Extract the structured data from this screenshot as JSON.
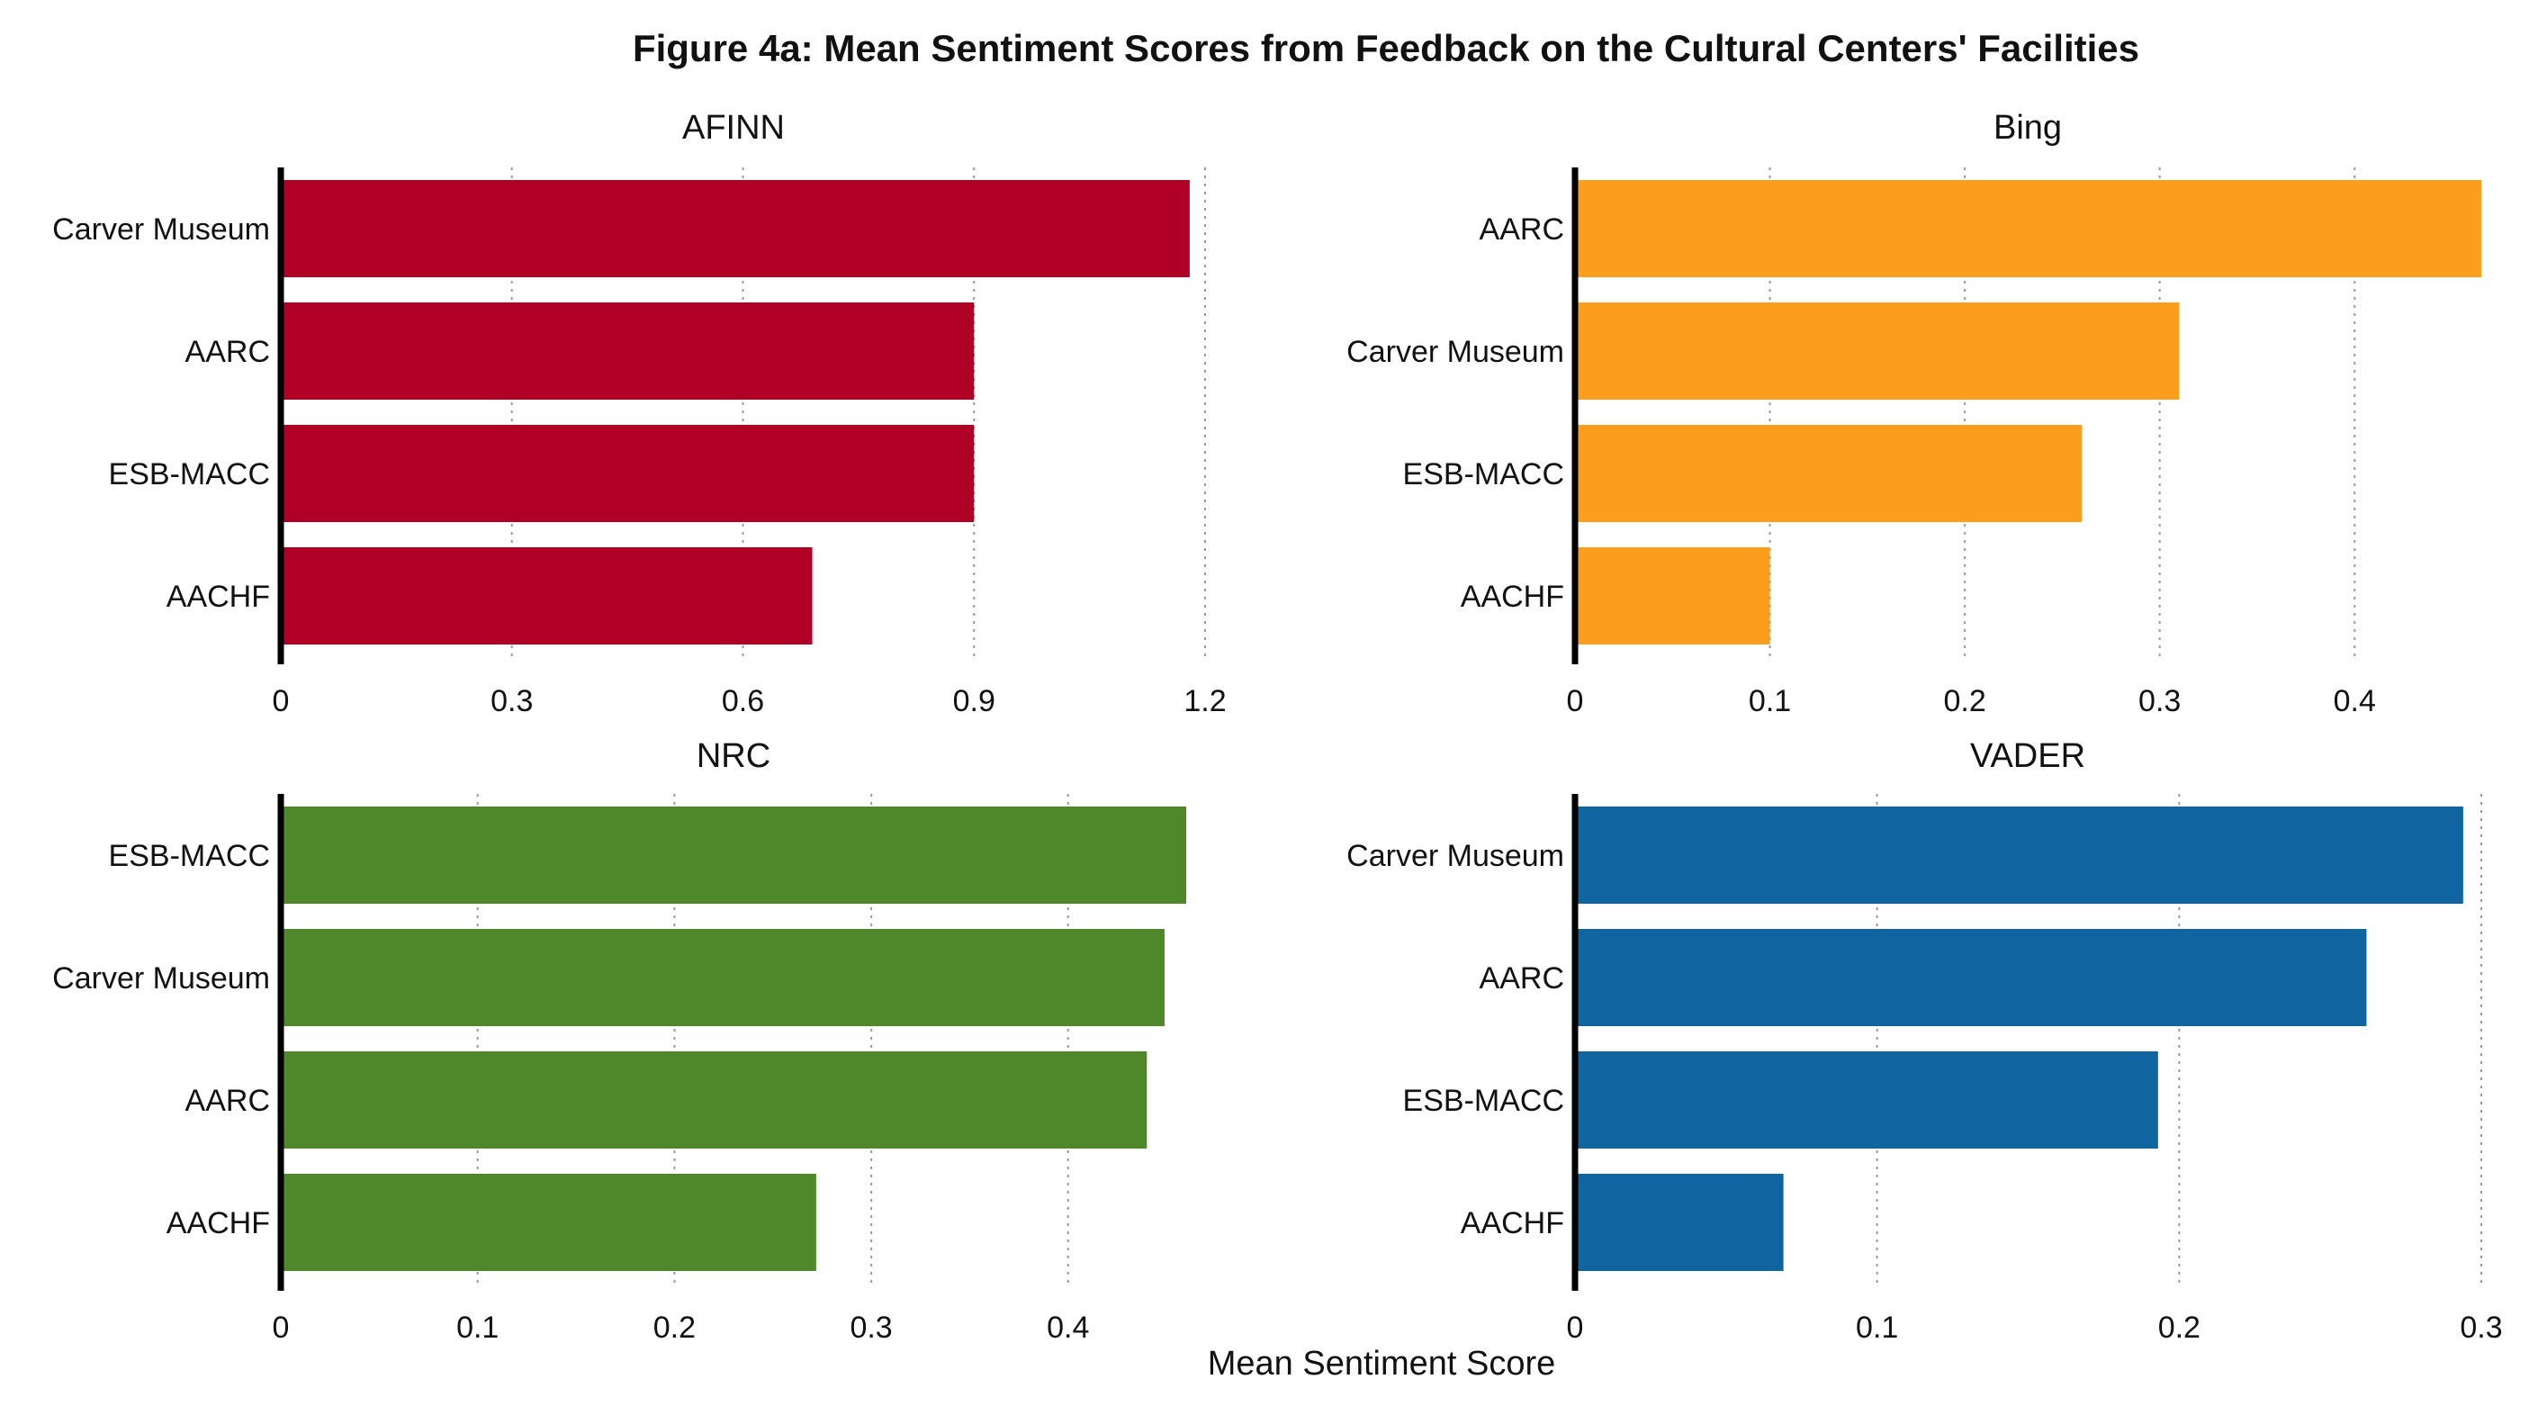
{
  "figure": {
    "title": "Figure 4a: Mean Sentiment Scores from Feedback on the Cultural Centers' Facilities",
    "xlabel": "Mean Sentiment Score"
  },
  "chart_data": [
    {
      "type": "bar",
      "orientation": "horizontal",
      "title": "AFINN",
      "color": "#B10026",
      "categories": [
        "Carver Museum",
        "AARC",
        "ESB-MACC",
        "AACHF"
      ],
      "values": [
        1.18,
        0.9,
        0.9,
        0.69
      ],
      "xlim": [
        0,
        1.2
      ],
      "xticks": [
        0,
        0.3,
        0.6,
        0.9,
        1.2
      ],
      "xtick_labels": [
        "0",
        "0.3",
        "0.6",
        "0.9",
        "1.2"
      ],
      "grid": "vertical dotted"
    },
    {
      "type": "bar",
      "orientation": "horizontal",
      "title": "Bing",
      "color": "#FB9E1E",
      "categories": [
        "AARC",
        "Carver Museum",
        "ESB-MACC",
        "AACHF"
      ],
      "values": [
        0.465,
        0.31,
        0.26,
        0.1
      ],
      "xlim": [
        0,
        0.465
      ],
      "xticks": [
        0,
        0.1,
        0.2,
        0.3,
        0.4
      ],
      "xtick_labels": [
        "0",
        "0.1",
        "0.2",
        "0.3",
        "0.4"
      ],
      "grid": "vertical dotted"
    },
    {
      "type": "bar",
      "orientation": "horizontal",
      "title": "NRC",
      "color": "#4F8828",
      "categories": [
        "ESB-MACC",
        "Carver Museum",
        "AARC",
        "AACHF"
      ],
      "values": [
        0.46,
        0.449,
        0.44,
        0.272
      ],
      "xlim": [
        0,
        0.46
      ],
      "xticks": [
        0,
        0.1,
        0.2,
        0.3,
        0.4
      ],
      "xtick_labels": [
        "0",
        "0.1",
        "0.2",
        "0.3",
        "0.4"
      ],
      "grid": "vertical dotted"
    },
    {
      "type": "bar",
      "orientation": "horizontal",
      "title": "VADER",
      "color": "#0E65A0",
      "categories": [
        "Carver Museum",
        "AARC",
        "ESB-MACC",
        "AACHF"
      ],
      "values": [
        0.294,
        0.262,
        0.193,
        0.069
      ],
      "xlim": [
        0,
        0.3
      ],
      "xticks": [
        0,
        0.1,
        0.2,
        0.3
      ],
      "xtick_labels": [
        "0",
        "0.1",
        "0.2",
        "0.3"
      ],
      "grid": "vertical dotted"
    }
  ]
}
